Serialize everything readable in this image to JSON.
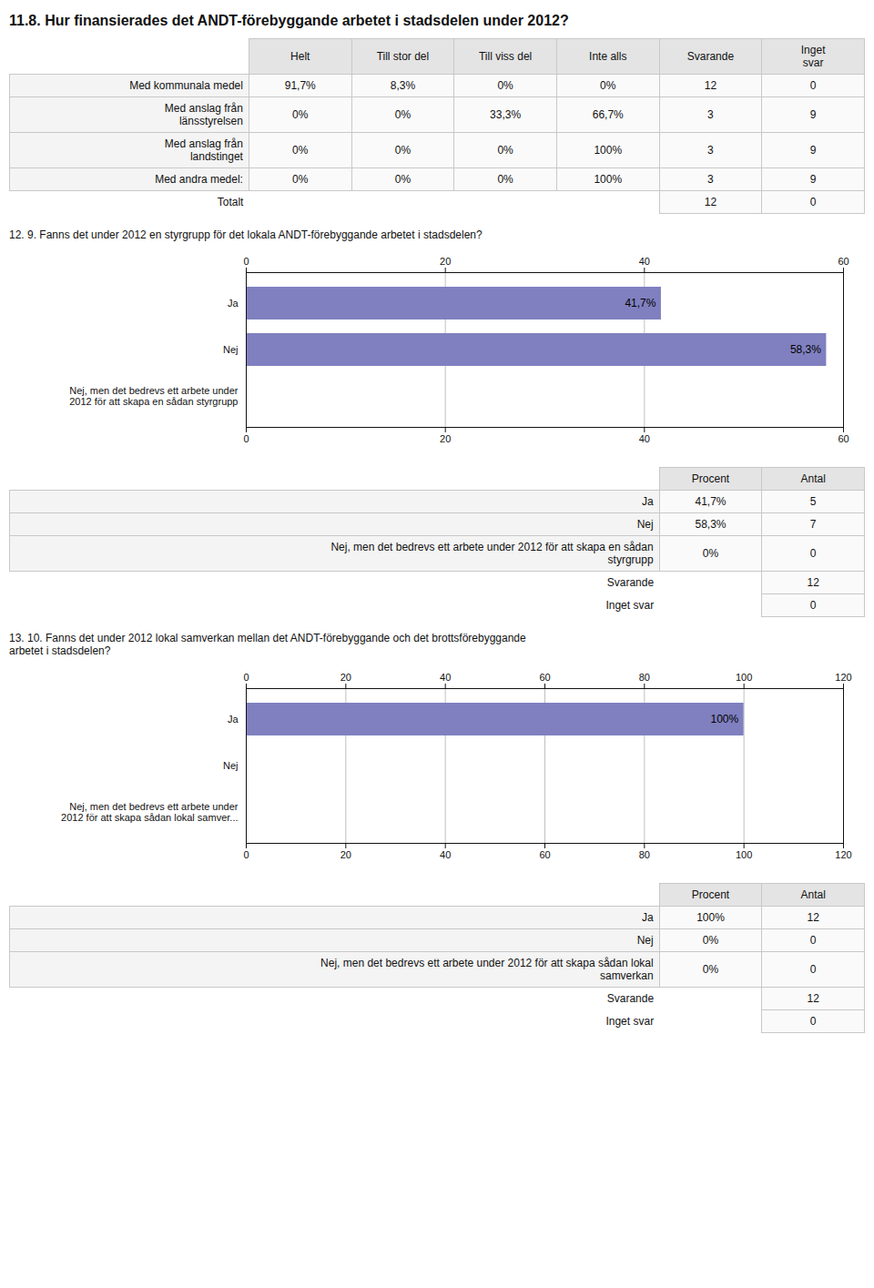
{
  "chart_data": [
    {
      "type": "table",
      "title": "11.8. Hur finansierades det ANDT-förebyggande arbetet i stadsdelen under 2012?",
      "categories": [
        "Med kommunala medel",
        "Med anslag från\nlänsstyrelsen",
        "Med anslag från\nlandstinget",
        "Med andra medel:",
        "Totalt"
      ],
      "series": [
        {
          "name": "Helt",
          "values": [
            91.7,
            0,
            0,
            0,
            null
          ],
          "value_labels": [
            "91,7%",
            "0%",
            "0%",
            "0%",
            null
          ]
        },
        {
          "name": "Till stor del",
          "values": [
            8.3,
            0,
            0,
            0,
            null
          ],
          "value_labels": [
            "8,3%",
            "0%",
            "0%",
            "0%",
            null
          ]
        },
        {
          "name": "Till viss del",
          "values": [
            0,
            33.3,
            0,
            0,
            null
          ],
          "value_labels": [
            "0%",
            "33,3%",
            "0%",
            "0%",
            null
          ]
        },
        {
          "name": "Inte alls",
          "values": [
            0,
            66.7,
            100,
            100,
            null
          ],
          "value_labels": [
            "0%",
            "66,7%",
            "100%",
            "100%",
            null
          ]
        },
        {
          "name": "Svarande",
          "values": [
            12,
            3,
            3,
            3,
            12
          ]
        },
        {
          "name": "Inget\nsvar",
          "values": [
            0,
            9,
            9,
            9,
            0
          ]
        }
      ]
    },
    {
      "type": "bar",
      "orientation": "horizontal",
      "title": "12. 9. Fanns det under 2012 en styrgrupp för det lokala ANDT-förebyggande arbetet i stadsdelen?",
      "categories": [
        "Ja",
        "Nej",
        "Nej, men det bedrevs ett arbete under\n2012 för att skapa en sådan styrgrupp"
      ],
      "values": [
        41.7,
        58.3,
        0.0
      ],
      "value_labels": [
        "41,7%",
        "58,3%",
        null
      ],
      "data_labels": true,
      "color": "#8080c0",
      "xlim": [
        0,
        60
      ],
      "xticks": [
        0,
        20,
        40,
        60
      ],
      "grid": true
    },
    {
      "type": "table",
      "categories": [
        "Ja",
        "Nej",
        "Nej, men det bedrevs ett arbete under 2012 för att skapa en sådan\nstyrgrupp",
        "Svarande",
        "Inget svar"
      ],
      "series": [
        {
          "name": "Procent",
          "values": [
            41.7,
            58.3,
            0,
            null,
            null
          ],
          "value_labels": [
            "41,7%",
            "58,3%",
            "0%",
            null,
            null
          ]
        },
        {
          "name": "Antal",
          "values": [
            5,
            7,
            0,
            12,
            0
          ]
        }
      ]
    },
    {
      "type": "bar",
      "orientation": "horizontal",
      "title": "13. 10. Fanns det under 2012 lokal samverkan mellan det ANDT-förebyggande och det brottsförebyggande\narbetet i stadsdelen?",
      "categories": [
        "Ja",
        "Nej",
        "Nej, men det bedrevs ett arbete under\n2012 för att skapa sådan lokal samver..."
      ],
      "values": [
        100.0,
        0.0,
        0.0
      ],
      "value_labels": [
        "100%",
        null,
        null
      ],
      "data_labels": true,
      "color": "#8080c0",
      "xlim": [
        0,
        120
      ],
      "xticks": [
        0,
        20,
        40,
        60,
        80,
        100,
        120
      ],
      "grid": true
    },
    {
      "type": "table",
      "categories": [
        "Ja",
        "Nej",
        "Nej, men det bedrevs ett arbete under 2012 för att skapa sådan lokal\nsamverkan",
        "Svarande",
        "Inget svar"
      ],
      "series": [
        {
          "name": "Procent",
          "values": [
            100,
            0,
            0,
            null,
            null
          ],
          "value_labels": [
            "100%",
            "0%",
            "0%",
            null,
            null
          ]
        },
        {
          "name": "Antal",
          "values": [
            12,
            0,
            0,
            12,
            0
          ]
        }
      ]
    }
  ]
}
